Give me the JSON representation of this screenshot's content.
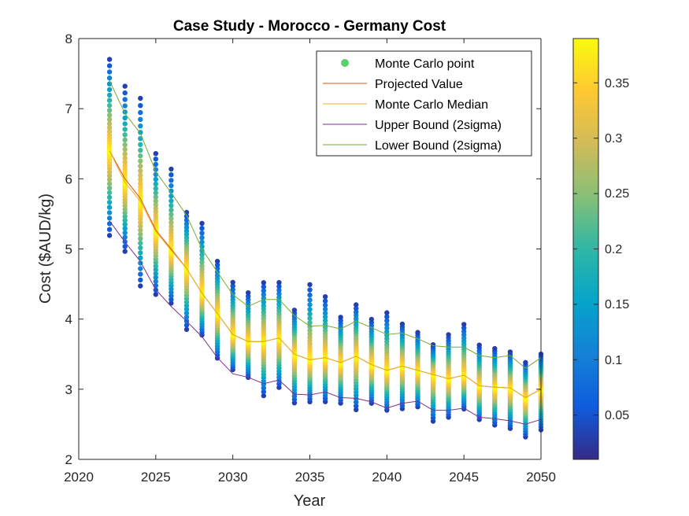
{
  "chart_data": {
    "type": "scatter",
    "title": "Case Study - Morocco - Germany Cost",
    "xlabel": "Year",
    "ylabel": "Cost ($AUD/kg)",
    "xlim": [
      2020,
      2050
    ],
    "ylim": [
      2,
      8
    ],
    "x_ticks": [
      "2020",
      "2025",
      "2030",
      "2035",
      "2040",
      "2045",
      "2050"
    ],
    "y_ticks": [
      "2",
      "3",
      "4",
      "5",
      "6",
      "7",
      "8"
    ],
    "grid": false,
    "legend_location": "top-right",
    "colorbar": {
      "colormap": "parula",
      "range": [
        0.01,
        0.39
      ],
      "ticks": [
        "0.05",
        "0.1",
        "0.15",
        "0.2",
        "0.25",
        "0.3",
        "0.35"
      ]
    },
    "years": [
      2022,
      2023,
      2024,
      2025,
      2026,
      2027,
      2028,
      2029,
      2030,
      2031,
      2032,
      2033,
      2034,
      2035,
      2036,
      2037,
      2038,
      2039,
      2040,
      2041,
      2042,
      2043,
      2044,
      2045,
      2046,
      2047,
      2048,
      2049,
      2050
    ],
    "monte_carlo_ranges": [
      [
        5.15,
        7.75
      ],
      [
        4.93,
        7.37
      ],
      [
        4.43,
        7.2
      ],
      [
        4.32,
        6.4
      ],
      [
        4.2,
        6.18
      ],
      [
        3.82,
        5.55
      ],
      [
        3.75,
        5.4
      ],
      [
        3.42,
        4.85
      ],
      [
        3.26,
        4.55
      ],
      [
        3.15,
        4.4
      ],
      [
        2.88,
        4.55
      ],
      [
        3.0,
        4.55
      ],
      [
        2.78,
        4.15
      ],
      [
        2.8,
        4.53
      ],
      [
        2.8,
        4.35
      ],
      [
        2.78,
        4.05
      ],
      [
        2.68,
        4.23
      ],
      [
        2.78,
        4.02
      ],
      [
        2.68,
        4.12
      ],
      [
        2.7,
        3.95
      ],
      [
        2.73,
        3.83
      ],
      [
        2.52,
        3.65
      ],
      [
        2.58,
        3.8
      ],
      [
        2.7,
        3.95
      ],
      [
        2.55,
        3.65
      ],
      [
        2.47,
        3.6
      ],
      [
        2.42,
        3.55
      ],
      [
        2.3,
        3.4
      ],
      [
        2.4,
        3.52
      ]
    ],
    "series": [
      {
        "name": "Monte Carlo point",
        "color": "#5ad16a",
        "marker": "circle"
      },
      {
        "name": "Projected Value",
        "color": "#d95319",
        "values": [
          6.4,
          6.0,
          5.72,
          5.27,
          5.0,
          4.72,
          4.37,
          4.08,
          3.78,
          3.68,
          3.68,
          3.73,
          3.5,
          3.42,
          3.45,
          3.38,
          3.47,
          3.35,
          3.27,
          3.33,
          3.27,
          3.21,
          3.15,
          3.2,
          3.05,
          3.03,
          3.02,
          2.88,
          3.0
        ]
      },
      {
        "name": "Monte Carlo Median",
        "color": "#edb120",
        "values": [
          6.4,
          5.95,
          5.68,
          5.25,
          4.98,
          4.72,
          4.37,
          4.08,
          3.78,
          3.68,
          3.68,
          3.73,
          3.5,
          3.42,
          3.45,
          3.38,
          3.47,
          3.35,
          3.27,
          3.33,
          3.27,
          3.21,
          3.15,
          3.2,
          3.05,
          3.03,
          3.02,
          2.88,
          3.0
        ]
      },
      {
        "name": "Upper Bound (2sigma)",
        "color": "#7e2f8e",
        "values": [
          5.4,
          5.1,
          4.82,
          4.42,
          4.18,
          3.97,
          3.75,
          3.45,
          3.22,
          3.17,
          3.08,
          3.13,
          2.93,
          2.92,
          2.96,
          2.88,
          2.87,
          2.82,
          2.73,
          2.8,
          2.83,
          2.7,
          2.7,
          2.73,
          2.6,
          2.58,
          2.55,
          2.5,
          2.57
        ]
      },
      {
        "name": "Lower Bound (2sigma)",
        "color": "#77ac30",
        "values": [
          7.4,
          6.93,
          6.65,
          6.1,
          5.8,
          5.48,
          5.0,
          4.67,
          4.35,
          4.18,
          4.28,
          4.28,
          4.05,
          3.9,
          3.91,
          3.86,
          3.97,
          3.88,
          3.78,
          3.8,
          3.72,
          3.62,
          3.6,
          3.6,
          3.48,
          3.45,
          3.48,
          3.3,
          3.45
        ]
      }
    ]
  }
}
